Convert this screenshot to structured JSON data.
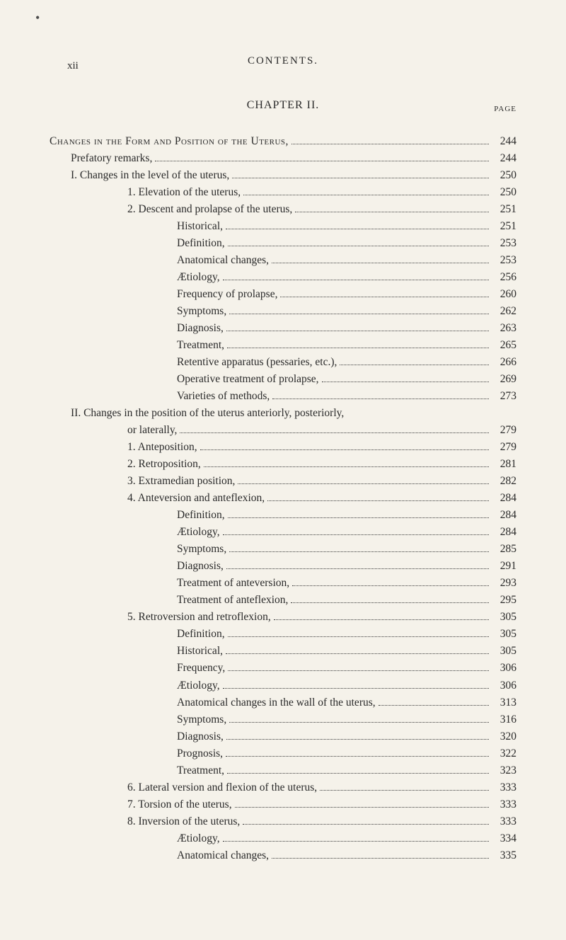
{
  "page_number": "xii",
  "running_title": "CONTENTS.",
  "chapter_title": "CHAPTER II.",
  "page_label": "PAGE",
  "dots_marker": "•",
  "entries": [
    {
      "text": "Changes in the Form and Position of the Uterus,",
      "page": "244",
      "indent": 0,
      "smallcaps": true
    },
    {
      "text": "Prefatory remarks,",
      "page": "244",
      "indent": 1
    },
    {
      "text": "I. Changes in the level of the uterus,",
      "page": "250",
      "indent": 1
    },
    {
      "text": "1. Elevation of the uterus,",
      "page": "250",
      "indent": 3
    },
    {
      "text": "2. Descent and prolapse of the uterus,",
      "page": "251",
      "indent": 3
    },
    {
      "text": "Historical,",
      "page": "251",
      "indent": 4
    },
    {
      "text": "Definition,",
      "page": "253",
      "indent": 4
    },
    {
      "text": "Anatomical changes,",
      "page": "253",
      "indent": 4
    },
    {
      "text": "Ætiology,",
      "page": "256",
      "indent": 4
    },
    {
      "text": "Frequency of prolapse,",
      "page": "260",
      "indent": 4
    },
    {
      "text": "Symptoms,",
      "page": "262",
      "indent": 4
    },
    {
      "text": "Diagnosis,",
      "page": "263",
      "indent": 4
    },
    {
      "text": "Treatment,",
      "page": "265",
      "indent": 4
    },
    {
      "text": "Retentive apparatus (pessaries, etc.),",
      "page": "266",
      "indent": 4
    },
    {
      "text": "Operative treatment of prolapse,",
      "page": "269",
      "indent": 4
    },
    {
      "text": "Varieties of methods,",
      "page": "273",
      "indent": 4
    },
    {
      "text": "II. Changes in the position of the uterus anteriorly, posteriorly,",
      "page": "",
      "indent": 1,
      "nodots": true
    },
    {
      "text": "or laterally,",
      "page": "279",
      "indent": 3
    },
    {
      "text": "1. Anteposition,",
      "page": "279",
      "indent": 3
    },
    {
      "text": "2. Retroposition,",
      "page": "281",
      "indent": 3
    },
    {
      "text": "3. Extramedian position,",
      "page": "282",
      "indent": 3
    },
    {
      "text": "4. Anteversion and anteflexion,",
      "page": "284",
      "indent": 3
    },
    {
      "text": "Definition,",
      "page": "284",
      "indent": 4
    },
    {
      "text": "Ætiology,",
      "page": "284",
      "indent": 4
    },
    {
      "text": "Symptoms,",
      "page": "285",
      "indent": 4
    },
    {
      "text": "Diagnosis,",
      "page": "291",
      "indent": 4
    },
    {
      "text": "Treatment of anteversion,",
      "page": "293",
      "indent": 4
    },
    {
      "text": "Treatment of anteflexion,",
      "page": "295",
      "indent": 4
    },
    {
      "text": "5. Retroversion and retroflexion,",
      "page": "305",
      "indent": 3
    },
    {
      "text": "Definition,",
      "page": "305",
      "indent": 4
    },
    {
      "text": "Historical,",
      "page": "305",
      "indent": 4
    },
    {
      "text": "Frequency,",
      "page": "306",
      "indent": 4
    },
    {
      "text": "Ætiology,",
      "page": "306",
      "indent": 4
    },
    {
      "text": "Anatomical changes in the wall of the uterus,",
      "page": "313",
      "indent": 4
    },
    {
      "text": "Symptoms,",
      "page": "316",
      "indent": 4
    },
    {
      "text": "Diagnosis,",
      "page": "320",
      "indent": 4
    },
    {
      "text": "Prognosis,",
      "page": "322",
      "indent": 4
    },
    {
      "text": "Treatment,",
      "page": "323",
      "indent": 4
    },
    {
      "text": "6. Lateral version and flexion of the uterus,",
      "page": "333",
      "indent": 3
    },
    {
      "text": "7. Torsion of the uterus,",
      "page": "333",
      "indent": 3
    },
    {
      "text": "8. Inversion of the uterus,",
      "page": "333",
      "indent": 3
    },
    {
      "text": "Ætiology,",
      "page": "334",
      "indent": 4
    },
    {
      "text": "Anatomical changes,",
      "page": "335",
      "indent": 4
    }
  ]
}
